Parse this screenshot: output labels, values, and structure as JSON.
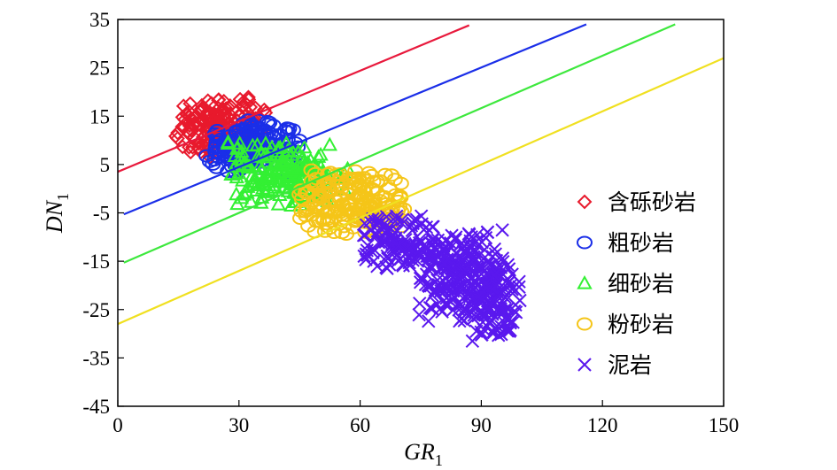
{
  "chart_data": {
    "type": "scatter",
    "xlim": [
      0,
      150
    ],
    "ylim": [
      -45,
      35
    ],
    "x_ticks": [
      0,
      30,
      60,
      90,
      120,
      150
    ],
    "y_ticks": [
      35,
      25,
      15,
      5,
      -5,
      -15,
      -25,
      -35,
      -45
    ],
    "xlabel": {
      "main": "GR",
      "sub": "1"
    },
    "ylabel": {
      "main": "DN",
      "sub": "1"
    },
    "grid": false,
    "legend_position": "right-center",
    "boundary_lines": [
      {
        "color": "#e8193c",
        "x": [
          0,
          87
        ],
        "y": [
          3.5,
          33.8
        ]
      },
      {
        "color": "#1a2ee8",
        "x": [
          1.5,
          116
        ],
        "y": [
          -5.3,
          34
        ]
      },
      {
        "color": "#3de83d",
        "x": [
          1.5,
          138
        ],
        "y": [
          -15.3,
          34
        ]
      },
      {
        "color": "#f0e020",
        "x": [
          0,
          150
        ],
        "y": [
          -28,
          27
        ]
      }
    ],
    "series": [
      {
        "name": "含砾砂岩",
        "marker": "diamond",
        "color": "#e8192c",
        "clusters": [
          {
            "cx": 25,
            "cy": 13,
            "sx": 6,
            "sy": 3.5,
            "n": 180
          }
        ]
      },
      {
        "name": "粗砂岩",
        "marker": "circle",
        "color": "#1a2ee8",
        "clusters": [
          {
            "cx": 34,
            "cy": 8.5,
            "sx": 6.5,
            "sy": 3,
            "n": 180
          }
        ]
      },
      {
        "name": "细砂岩",
        "marker": "triangle",
        "color": "#33f033",
        "clusters": [
          {
            "cx": 42,
            "cy": 3,
            "sx": 8,
            "sy": 3.5,
            "n": 200
          }
        ]
      },
      {
        "name": "粉砂岩",
        "marker": "circle",
        "color": "#f5c518",
        "clusters": [
          {
            "cx": 58,
            "cy": -2.5,
            "sx": 7,
            "sy": 3.5,
            "n": 180
          }
        ]
      },
      {
        "name": "泥岩",
        "marker": "x",
        "color": "#5a18ee",
        "clusters": [
          {
            "cx": 70,
            "cy": -11,
            "sx": 6,
            "sy": 3,
            "n": 120
          },
          {
            "cx": 85,
            "cy": -18,
            "sx": 5.5,
            "sy": 5,
            "n": 220
          },
          {
            "cx": 93,
            "cy": -23,
            "sx": 3.5,
            "sy": 5,
            "n": 120
          }
        ]
      }
    ]
  }
}
